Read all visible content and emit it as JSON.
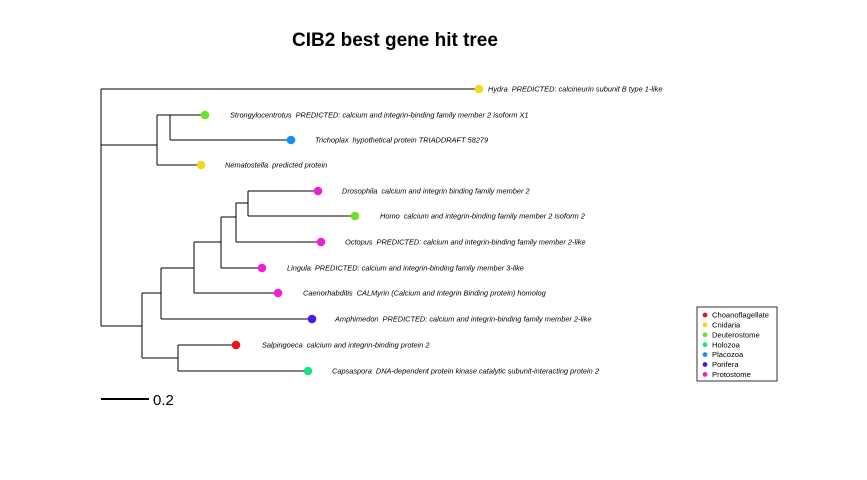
{
  "title": "CIB2 best gene hit tree",
  "scale_bar_label": "0.2",
  "colors": {
    "Choanoflagellate": "#e8141a",
    "Cnidaria": "#f2d71c",
    "Deuterostome": "#6ee22a",
    "Holozoa": "#19e28a",
    "Placozoa": "#1a8ef0",
    "Porifera": "#4a18e8",
    "Protostome": "#f01ed8"
  },
  "legend": [
    {
      "label": "Choanoflagellate",
      "group": "Choanoflagellate"
    },
    {
      "label": "Cnidaria",
      "group": "Cnidaria"
    },
    {
      "label": "Deuterostome",
      "group": "Deuterostome"
    },
    {
      "label": "Holozoa",
      "group": "Holozoa"
    },
    {
      "label": "Placozoa",
      "group": "Placozoa"
    },
    {
      "label": "Porifera",
      "group": "Porifera"
    },
    {
      "label": "Protostome",
      "group": "Protostome"
    }
  ],
  "tips": [
    {
      "id": "hydra",
      "species": "Hydra",
      "description": "PREDICTED: calcineurin subunit B type 1-like",
      "group": "Cnidaria"
    },
    {
      "id": "strongylocentrotus",
      "species": "Strongylocentrotus",
      "description": "PREDICTED: calcium and integrin-binding family member 2 isoform X1",
      "group": "Deuterostome"
    },
    {
      "id": "trichoplax",
      "species": "Trichoplax",
      "description": "hypothetical protein TRIADDRAFT 58279",
      "group": "Placozoa"
    },
    {
      "id": "nematostella",
      "species": "Nematostella",
      "description": "predicted protein",
      "group": "Cnidaria"
    },
    {
      "id": "drosophila",
      "species": "Drosophila",
      "description": "calcium and integrin binding family member 2",
      "group": "Protostome"
    },
    {
      "id": "homo",
      "species": "Homo",
      "description": "calcium and integrin-binding family member 2 isoform 2",
      "group": "Deuterostome"
    },
    {
      "id": "octopus",
      "species": "Octopus",
      "description": "PREDICTED: calcium and integrin-binding family member 2-like",
      "group": "Protostome"
    },
    {
      "id": "lingula",
      "species": "Lingula",
      "description": "PREDICTED: calcium and integrin-binding family member 3-like",
      "group": "Protostome"
    },
    {
      "id": "caenorhabditis",
      "species": "Caenorhabditis",
      "description": "CALMyrin (Calcium and Integrin Binding protein) homolog",
      "group": "Protostome"
    },
    {
      "id": "amphimedon",
      "species": "Amphimedon",
      "description": "PREDICTED: calcium and integrin-binding family member 2-like",
      "group": "Porifera"
    },
    {
      "id": "salpingoeca",
      "species": "Salpingoeca",
      "description": "calcium and integrin-binding protein 2",
      "group": "Choanoflagellate"
    },
    {
      "id": "capsaspora",
      "species": "Capsaspora",
      "description": "DNA-dependent protein kinase catalytic subunit-interacting protein 2",
      "group": "Holozoa"
    }
  ]
}
